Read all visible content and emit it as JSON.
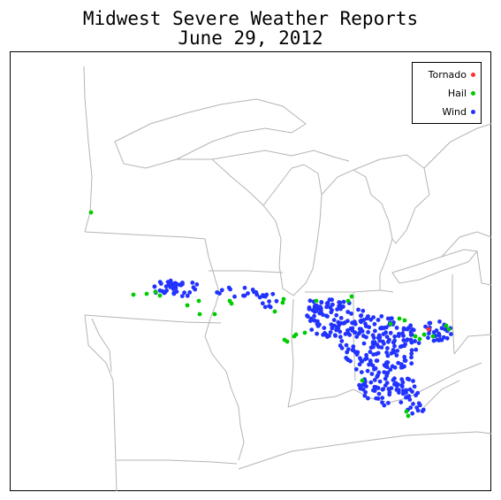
{
  "title": {
    "line1": "Midwest Severe Weather Reports",
    "line2": "June 29, 2012"
  },
  "legend": {
    "items": [
      {
        "label": "Tornado",
        "color": "#ff3333"
      },
      {
        "label": "Hail",
        "color": "#00cc00"
      },
      {
        "label": "Wind",
        "color": "#2233ff"
      }
    ]
  },
  "colors": {
    "border": "#000000",
    "boundaries": "#b4b4b4"
  }
}
